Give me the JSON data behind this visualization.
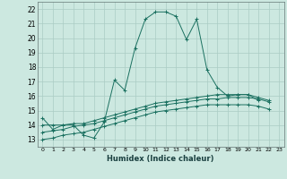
{
  "xlabel": "Humidex (Indice chaleur)",
  "ylabel": "",
  "background_color": "#cce8e0",
  "grid_color": "#aaccc4",
  "line_color": "#1a7060",
  "xlim": [
    -0.5,
    23.5
  ],
  "ylim": [
    12.5,
    22.5
  ],
  "yticks": [
    13,
    14,
    15,
    16,
    17,
    18,
    19,
    20,
    21,
    22
  ],
  "xticks": [
    0,
    1,
    2,
    3,
    4,
    5,
    6,
    7,
    8,
    9,
    10,
    11,
    12,
    13,
    14,
    15,
    16,
    17,
    18,
    19,
    20,
    21,
    22,
    23
  ],
  "series": [
    [
      14.5,
      13.7,
      14.0,
      14.0,
      13.3,
      13.1,
      14.2,
      17.1,
      16.4,
      19.3,
      21.3,
      21.8,
      21.8,
      21.5,
      19.9,
      21.3,
      17.8,
      16.6,
      16.0,
      16.1,
      16.1,
      15.7,
      null,
      null
    ],
    [
      14.0,
      14.0,
      14.0,
      14.1,
      14.1,
      14.3,
      14.5,
      14.7,
      14.9,
      15.1,
      15.3,
      15.5,
      15.6,
      15.7,
      15.8,
      15.9,
      16.0,
      16.1,
      16.1,
      16.1,
      16.1,
      15.9,
      15.7,
      null
    ],
    [
      13.5,
      13.6,
      13.7,
      13.9,
      14.0,
      14.1,
      14.3,
      14.5,
      14.7,
      14.9,
      15.1,
      15.3,
      15.4,
      15.5,
      15.6,
      15.7,
      15.8,
      15.8,
      15.9,
      15.9,
      15.9,
      15.8,
      15.6,
      null
    ],
    [
      13.0,
      13.1,
      13.3,
      13.4,
      13.5,
      13.7,
      13.9,
      14.1,
      14.3,
      14.5,
      14.7,
      14.9,
      15.0,
      15.1,
      15.2,
      15.3,
      15.4,
      15.4,
      15.4,
      15.4,
      15.4,
      15.3,
      15.1,
      null
    ]
  ],
  "markers": [
    "+",
    "+",
    "+",
    "+"
  ],
  "markersizes": [
    3,
    3,
    3,
    3
  ]
}
